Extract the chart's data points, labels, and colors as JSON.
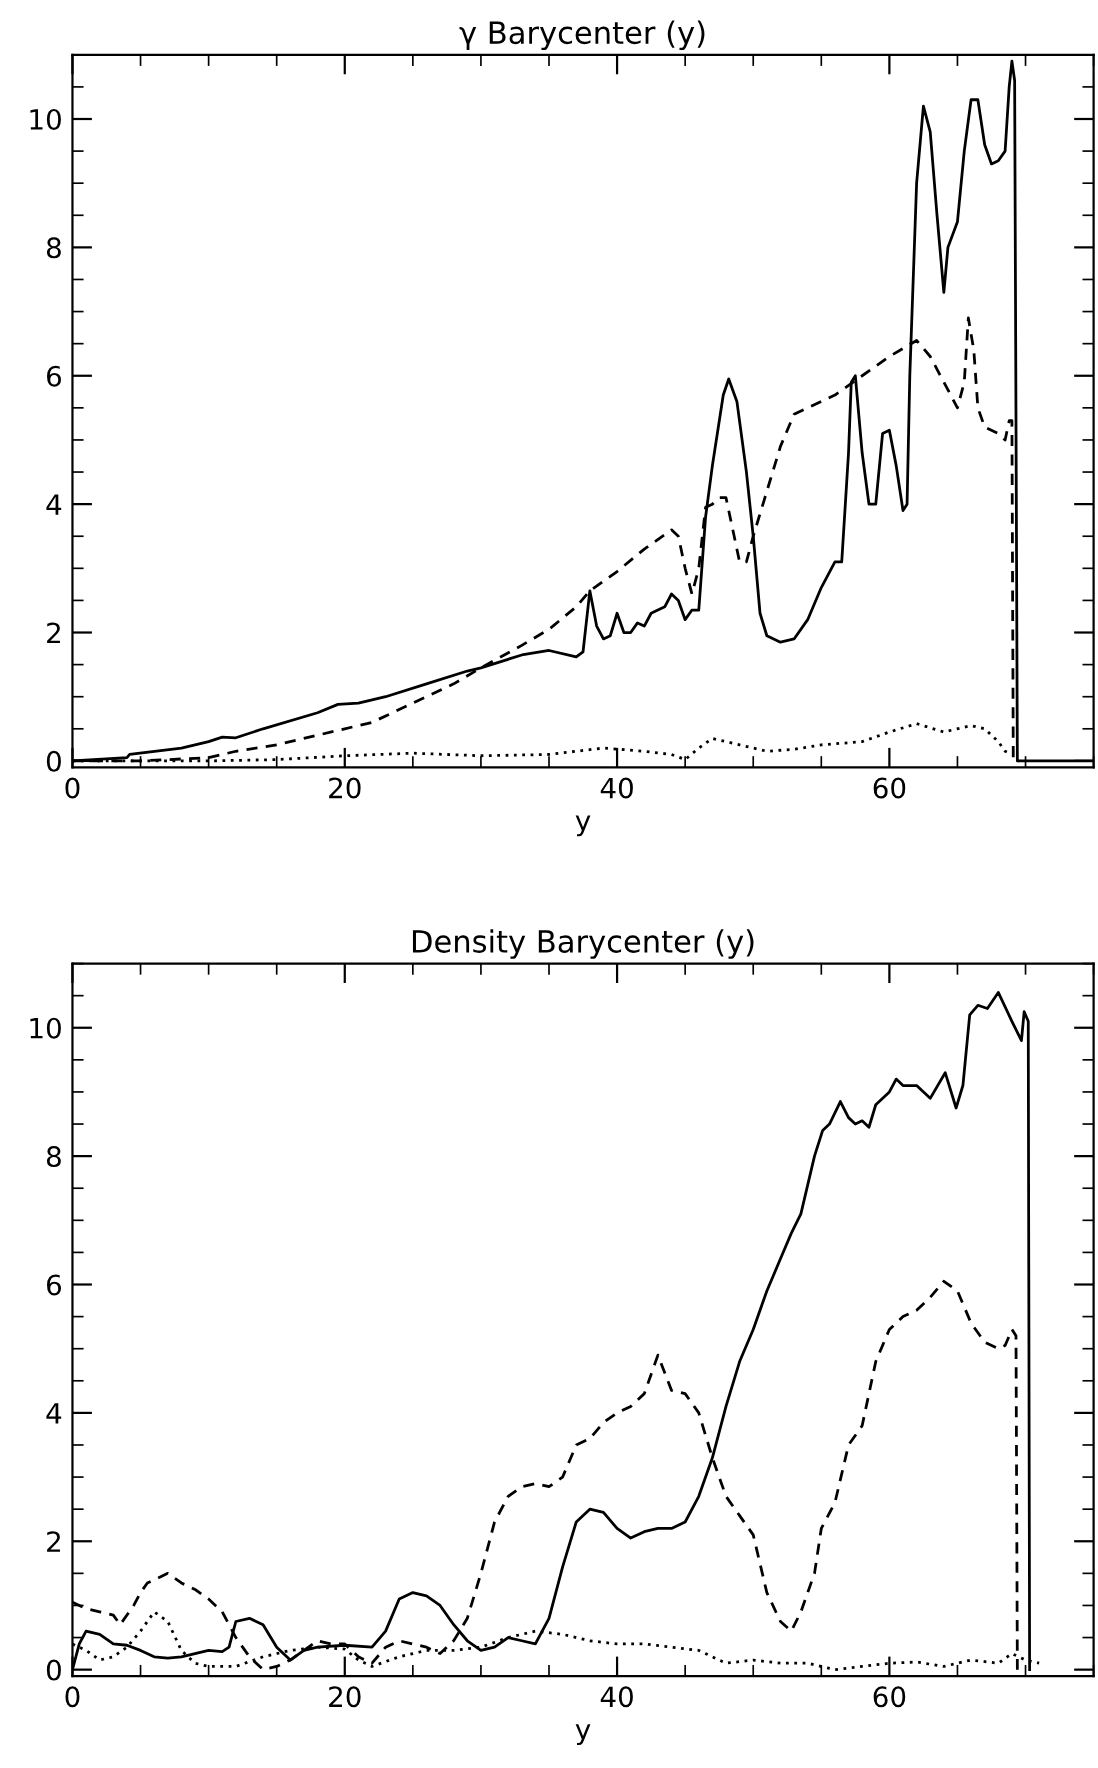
{
  "chart_data": [
    {
      "type": "line",
      "title": "γ Barycenter (y)",
      "xlabel": "y",
      "xlim": [
        0,
        75
      ],
      "ylim": [
        -0.1,
        11
      ],
      "xticks": [
        0,
        20,
        40,
        60
      ],
      "yticks": [
        0,
        2,
        4,
        6,
        8,
        10
      ],
      "series": [
        {
          "color": "#000000",
          "line_style": "solid",
          "x": [
            0,
            4,
            4.2,
            8,
            10,
            11,
            12,
            14,
            18,
            19.5,
            21,
            23,
            26,
            29,
            30,
            33,
            35,
            37,
            37.5,
            38,
            38.5,
            39,
            39.5,
            40,
            40.5,
            41,
            41.5,
            42,
            42.5,
            43.5,
            44,
            44.5,
            45,
            45.5,
            46,
            46.5,
            47,
            47.8,
            48.2,
            48.8,
            49.5,
            50,
            50.5,
            51,
            52,
            53,
            54,
            55,
            56,
            56.5,
            57,
            57.2,
            57.5,
            58,
            58.5,
            59,
            59.5,
            60,
            60.5,
            61,
            61.3,
            61.5,
            62,
            62.5,
            63,
            63.5,
            64,
            64.3,
            65,
            65.5,
            66,
            66.5,
            67,
            67.5,
            68,
            68.5,
            68.8,
            69,
            69.2,
            69.4,
            75
          ],
          "values": [
            0,
            0.05,
            0.1,
            0.2,
            0.3,
            0.37,
            0.36,
            0.5,
            0.75,
            0.88,
            0.9,
            1.0,
            1.2,
            1.4,
            1.45,
            1.65,
            1.72,
            1.62,
            1.7,
            2.65,
            2.1,
            1.9,
            1.95,
            2.3,
            2.0,
            2.0,
            2.15,
            2.1,
            2.3,
            2.4,
            2.6,
            2.5,
            2.2,
            2.35,
            2.35,
            3.8,
            4.6,
            5.7,
            5.95,
            5.6,
            4.5,
            3.5,
            2.3,
            1.95,
            1.85,
            1.9,
            2.2,
            2.7,
            3.1,
            3.1,
            4.8,
            5.9,
            6.0,
            4.8,
            4.0,
            4.0,
            5.1,
            5.15,
            4.6,
            3.9,
            4.0,
            6.0,
            9.0,
            10.2,
            9.8,
            8.5,
            7.3,
            8.0,
            8.4,
            9.5,
            10.3,
            10.3,
            9.6,
            9.3,
            9.35,
            9.5,
            10.5,
            10.9,
            10.6,
            0,
            0
          ]
        },
        {
          "color": "#000000",
          "line_style": "dashed",
          "x": [
            0,
            5,
            10,
            12,
            15,
            18,
            20,
            22,
            25,
            28,
            30,
            33,
            35,
            37,
            38,
            40,
            42,
            44,
            44.5,
            45,
            45.5,
            46,
            46.5,
            47,
            47.5,
            48,
            48.5,
            49,
            49.5,
            50,
            51,
            52,
            53,
            54,
            56,
            58,
            60,
            62,
            63,
            64,
            65,
            65.5,
            65.8,
            66.2,
            66.5,
            67,
            68,
            68.5,
            68.8,
            69,
            69.1,
            69.5
          ],
          "values": [
            0,
            0,
            0.05,
            0.15,
            0.25,
            0.4,
            0.5,
            0.6,
            0.9,
            1.2,
            1.45,
            1.8,
            2.05,
            2.4,
            2.65,
            2.95,
            3.3,
            3.6,
            3.5,
            3.0,
            2.6,
            3.0,
            3.95,
            4.0,
            4.1,
            4.1,
            3.6,
            3.1,
            3.1,
            3.5,
            4.2,
            4.9,
            5.4,
            5.5,
            5.7,
            6.0,
            6.3,
            6.55,
            6.3,
            5.9,
            5.5,
            5.9,
            6.9,
            6.4,
            5.5,
            5.2,
            5.1,
            5.0,
            5.3,
            5.3,
            0,
            0
          ]
        },
        {
          "color": "#000000",
          "line_style": "dotted",
          "x": [
            0,
            10,
            15,
            20,
            25,
            30,
            35,
            37,
            39,
            42,
            44,
            45,
            46,
            47,
            49,
            51,
            53,
            55,
            58,
            60,
            62,
            64,
            66,
            67,
            68,
            68.5,
            69
          ],
          "values": [
            0,
            0,
            0.02,
            0.08,
            0.12,
            0.08,
            0.1,
            0.15,
            0.2,
            0.15,
            0.1,
            0.02,
            0.2,
            0.35,
            0.25,
            0.15,
            0.18,
            0.25,
            0.3,
            0.45,
            0.58,
            0.45,
            0.55,
            0.5,
            0.3,
            0.15,
            0.1
          ]
        }
      ]
    },
    {
      "type": "line",
      "title": "Density Barycenter (y)",
      "xlabel": "y",
      "xlim": [
        0,
        75
      ],
      "ylim": [
        -0.1,
        11
      ],
      "xticks": [
        0,
        20,
        40,
        60
      ],
      "yticks": [
        0,
        2,
        4,
        6,
        8,
        10
      ],
      "series": [
        {
          "color": "#000000",
          "line_style": "solid",
          "x": [
            0,
            0.5,
            1,
            2,
            3,
            4,
            5,
            6,
            7,
            8,
            9,
            10,
            11,
            11.5,
            12,
            13,
            14,
            15,
            16,
            17,
            18,
            20,
            22,
            23,
            24,
            25,
            26,
            27,
            28,
            29,
            30,
            31,
            32,
            33,
            34,
            35,
            36,
            37,
            38,
            39,
            40,
            41,
            42,
            43,
            44,
            45,
            46,
            47,
            48,
            49,
            50,
            51,
            52,
            52.8,
            53.5,
            54.5,
            55.1,
            55.6,
            56.4,
            57,
            57.5,
            58,
            58.5,
            59,
            60,
            60.5,
            61,
            62,
            63,
            64.1,
            64.9,
            65.4,
            65.9,
            66.5,
            67.2,
            68,
            69,
            69.7,
            69.9,
            70.2,
            70.3
          ],
          "values": [
            0,
            0.4,
            0.6,
            0.55,
            0.4,
            0.38,
            0.3,
            0.2,
            0.18,
            0.2,
            0.25,
            0.3,
            0.28,
            0.35,
            0.75,
            0.8,
            0.7,
            0.35,
            0.15,
            0.3,
            0.35,
            0.38,
            0.35,
            0.6,
            1.1,
            1.2,
            1.15,
            1.0,
            0.7,
            0.45,
            0.3,
            0.35,
            0.5,
            0.45,
            0.4,
            0.8,
            1.6,
            2.3,
            2.5,
            2.45,
            2.2,
            2.05,
            2.15,
            2.2,
            2.2,
            2.3,
            2.7,
            3.3,
            4.1,
            4.8,
            5.3,
            5.9,
            6.4,
            6.8,
            7.1,
            8.0,
            8.4,
            8.5,
            8.85,
            8.6,
            8.5,
            8.55,
            8.45,
            8.8,
            9.0,
            9.2,
            9.1,
            9.1,
            8.9,
            9.3,
            8.75,
            9.1,
            10.2,
            10.35,
            10.3,
            10.55,
            10.1,
            9.8,
            10.25,
            10.1,
            0
          ]
        },
        {
          "color": "#000000",
          "line_style": "dashed",
          "x": [
            0,
            1,
            2,
            3,
            3.5,
            4.5,
            5,
            5.5,
            6,
            7,
            8,
            9,
            10,
            11,
            12,
            13,
            13.5,
            14,
            15,
            16,
            17,
            18,
            19,
            20,
            21,
            22,
            23,
            24,
            25,
            26,
            27,
            28,
            29,
            30,
            31,
            32,
            33,
            34,
            35,
            36,
            37,
            38,
            39,
            40,
            41,
            42,
            43,
            44,
            45,
            46,
            47,
            48,
            49,
            50,
            51,
            52,
            52.8,
            53.5,
            54.5,
            55,
            56,
            57,
            58,
            59,
            60,
            61,
            62,
            63,
            64,
            65,
            66,
            67,
            68,
            68.5,
            69,
            69.3,
            69.4
          ],
          "values": [
            1.05,
            0.95,
            0.9,
            0.85,
            0.7,
            1.0,
            1.2,
            1.35,
            1.4,
            1.5,
            1.35,
            1.25,
            1.1,
            0.9,
            0.5,
            0.2,
            0.1,
            0.0,
            0.05,
            0.15,
            0.3,
            0.45,
            0.4,
            0.4,
            0.2,
            0.1,
            0.35,
            0.45,
            0.4,
            0.35,
            0.25,
            0.45,
            0.8,
            1.5,
            2.3,
            2.7,
            2.85,
            2.9,
            2.85,
            3.0,
            3.5,
            3.6,
            3.85,
            4.0,
            4.1,
            4.3,
            4.9,
            4.35,
            4.3,
            4.0,
            3.3,
            2.7,
            2.4,
            2.1,
            1.2,
            0.75,
            0.6,
            0.9,
            1.5,
            2.2,
            2.6,
            3.5,
            3.8,
            4.8,
            5.3,
            5.5,
            5.6,
            5.8,
            6.05,
            5.9,
            5.4,
            5.1,
            5.0,
            5.05,
            5.3,
            5.2,
            0
          ]
        },
        {
          "color": "#000000",
          "line_style": "dotted",
          "x": [
            0,
            1,
            2,
            3,
            4,
            5,
            6,
            7,
            8,
            9,
            10,
            12,
            14,
            16,
            18,
            20,
            21,
            22,
            24,
            26,
            28,
            30,
            32,
            34,
            36,
            38,
            40,
            42,
            44,
            46,
            48,
            50,
            52,
            54,
            56,
            58,
            60,
            62,
            64,
            66,
            68,
            69,
            70,
            71
          ],
          "values": [
            0.4,
            0.3,
            0.15,
            0.2,
            0.35,
            0.6,
            0.9,
            0.75,
            0.3,
            0.1,
            0.05,
            0.05,
            0.2,
            0.3,
            0.35,
            0.32,
            0.15,
            0.05,
            0.2,
            0.3,
            0.3,
            0.35,
            0.5,
            0.6,
            0.55,
            0.45,
            0.4,
            0.4,
            0.35,
            0.3,
            0.1,
            0.15,
            0.1,
            0.1,
            0.0,
            0.05,
            0.1,
            0.12,
            0.05,
            0.15,
            0.1,
            0.25,
            0.15,
            0.1
          ]
        }
      ]
    }
  ]
}
